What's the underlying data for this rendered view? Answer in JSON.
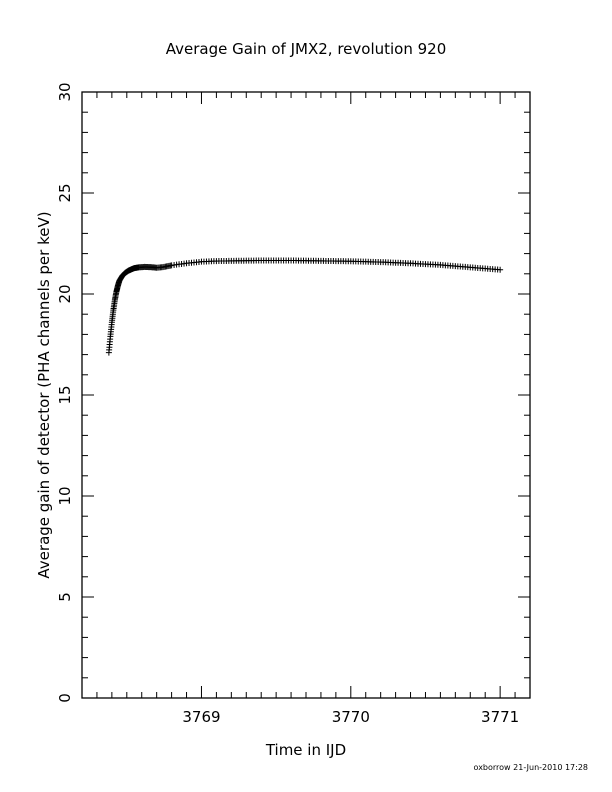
{
  "chart_data": {
    "type": "scatter",
    "title": "Average Gain of JMX2, revolution 920",
    "xlabel": "Time in IJD",
    "ylabel": "Average gain of detector (PHA channels per keV)",
    "xlim": [
      3768.2,
      3771.2
    ],
    "ylim": [
      0,
      30
    ],
    "xticks": [
      3769,
      3770,
      3771
    ],
    "yticks": [
      0,
      5,
      10,
      15,
      20,
      25,
      30
    ],
    "marker": "plus",
    "series": [
      {
        "x": [
          3768.38,
          3768.39,
          3768.4,
          3768.41,
          3768.42,
          3768.43,
          3768.44,
          3768.45,
          3768.47,
          3768.49,
          3768.51,
          3768.53,
          3768.55,
          3768.58,
          3768.62,
          3768.66,
          3768.7,
          3768.75,
          3768.8,
          3768.9,
          3769.0,
          3769.1,
          3769.2,
          3769.3,
          3769.4,
          3769.5,
          3769.6,
          3769.7,
          3769.8,
          3769.9,
          3770.0,
          3770.1,
          3770.2,
          3770.3,
          3770.4,
          3770.5,
          3770.6,
          3770.7,
          3770.8,
          3770.9,
          3771.0
        ],
        "y": [
          17.1,
          17.9,
          18.6,
          19.2,
          19.7,
          20.1,
          20.4,
          20.65,
          20.9,
          21.05,
          21.15,
          21.22,
          21.28,
          21.32,
          21.34,
          21.33,
          21.3,
          21.34,
          21.42,
          21.52,
          21.6,
          21.63,
          21.64,
          21.65,
          21.66,
          21.66,
          21.66,
          21.65,
          21.64,
          21.63,
          21.62,
          21.6,
          21.58,
          21.55,
          21.52,
          21.48,
          21.44,
          21.38,
          21.32,
          21.26,
          21.2
        ]
      }
    ]
  },
  "footer": "oxborrow 21-Jun-2010 17:28"
}
